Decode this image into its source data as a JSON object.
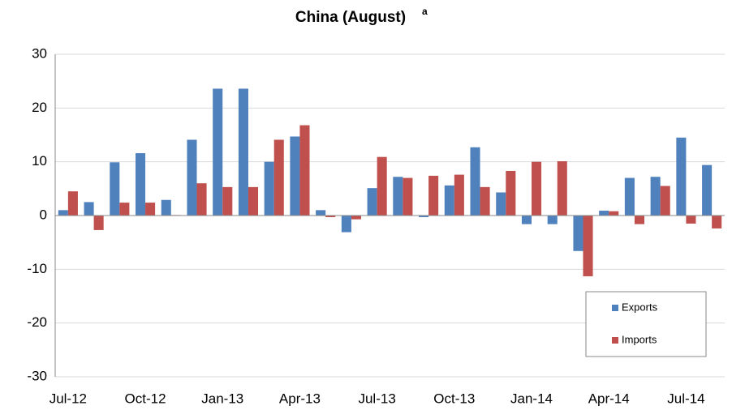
{
  "chart_data": {
    "type": "bar",
    "title": "China (August)",
    "annotation": "a",
    "categories": [
      "Jul-12",
      null,
      null,
      "Oct-12",
      null,
      null,
      "Jan-13",
      null,
      null,
      "Apr-13",
      null,
      null,
      "Jul-13",
      null,
      null,
      "Oct-13",
      null,
      null,
      "Jan-14",
      null,
      null,
      "Apr-14",
      null,
      null,
      "Jul-14",
      null
    ],
    "series": [
      {
        "name": "Exports",
        "color": "#4f81bd",
        "values": [
          1.0,
          2.5,
          9.9,
          11.6,
          2.9,
          14.1,
          23.6,
          23.6,
          10.0,
          14.7,
          1.0,
          -3.1,
          5.1,
          7.2,
          -0.3,
          5.6,
          12.7,
          4.3,
          -1.6,
          -1.6,
          -6.6,
          0.9,
          7.0,
          7.2,
          14.5,
          9.4
        ]
      },
      {
        "name": "Imports",
        "color": "#c0504d",
        "values": [
          4.5,
          -2.7,
          2.4,
          2.4,
          0.1,
          6.0,
          5.3,
          5.3,
          14.1,
          16.8,
          -0.3,
          -0.7,
          10.9,
          7.0,
          7.4,
          7.6,
          5.3,
          8.3,
          10.0,
          10.1,
          -11.3,
          0.8,
          -1.6,
          5.5,
          -1.5,
          -2.4
        ]
      }
    ],
    "ylim": [
      -30,
      30
    ],
    "yticks": [
      -30,
      -20,
      -10,
      0,
      10,
      20,
      30
    ],
    "grid": true,
    "legend": "lower right"
  }
}
